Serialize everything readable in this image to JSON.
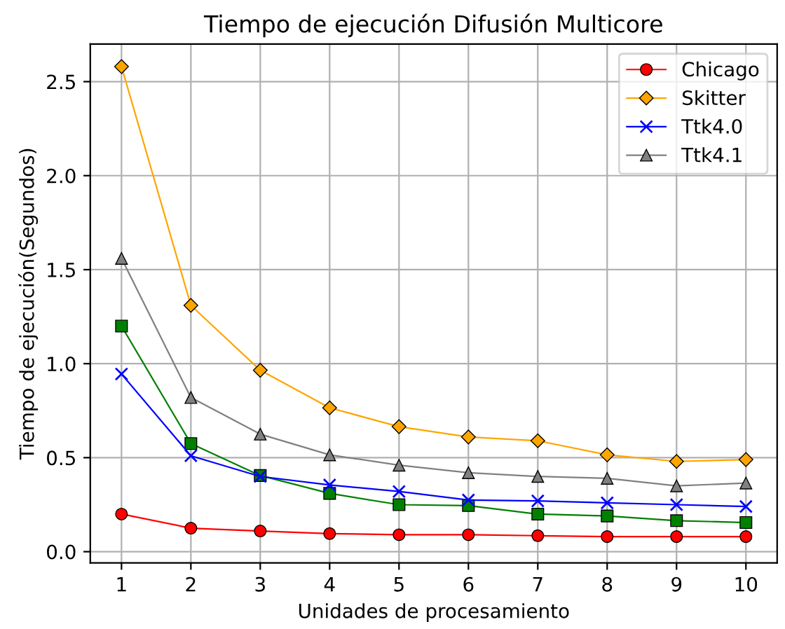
{
  "chart_data": {
    "type": "line",
    "title": "Tiempo de ejecución Difusión Multicore",
    "xlabel": "Unidades de procesamiento",
    "ylabel": "Tiempo de ejecución(Segundos)",
    "x": [
      1,
      2,
      3,
      4,
      5,
      6,
      7,
      8,
      9,
      10
    ],
    "xlim": [
      0.55,
      10.45
    ],
    "xticks": [
      1,
      2,
      3,
      4,
      5,
      6,
      7,
      8,
      9,
      10
    ],
    "ylim": [
      -0.06,
      2.7
    ],
    "yticks": [
      {
        "value": 0,
        "label": "0.0"
      },
      0.5,
      {
        "value": 1,
        "label": "1.0"
      },
      1.5,
      {
        "value": 2,
        "label": "2.0"
      },
      2.5
    ],
    "grid": true,
    "legend": "top right",
    "series": [
      {
        "name": "Chicago",
        "color": "#ff0000",
        "marker": "circle",
        "values": [
          0.2,
          0.125,
          0.11,
          0.096,
          0.09,
          0.09,
          0.085,
          0.08,
          0.08,
          0.08
        ]
      },
      {
        "color": "#008000",
        "marker": "square",
        "values": [
          1.2,
          0.575,
          0.405,
          0.31,
          0.25,
          0.245,
          0.2,
          0.19,
          0.165,
          0.155
        ]
      },
      {
        "name": "Skitter",
        "color": "#ffa500",
        "marker": "diamond",
        "values": [
          2.58,
          1.31,
          0.965,
          0.765,
          0.665,
          0.61,
          0.59,
          0.515,
          0.48,
          0.49
        ]
      },
      {
        "name": "Ttk4.0",
        "color": "#0000ff",
        "marker": "cross",
        "values": [
          0.945,
          0.51,
          0.4,
          0.355,
          0.32,
          0.275,
          0.27,
          0.26,
          0.25,
          0.24
        ]
      },
      {
        "name": "Ttk4.1",
        "color": "#808080",
        "marker": "triangle",
        "values": [
          1.56,
          0.82,
          0.625,
          0.515,
          0.46,
          0.42,
          0.4,
          0.39,
          0.35,
          0.365
        ]
      }
    ]
  }
}
